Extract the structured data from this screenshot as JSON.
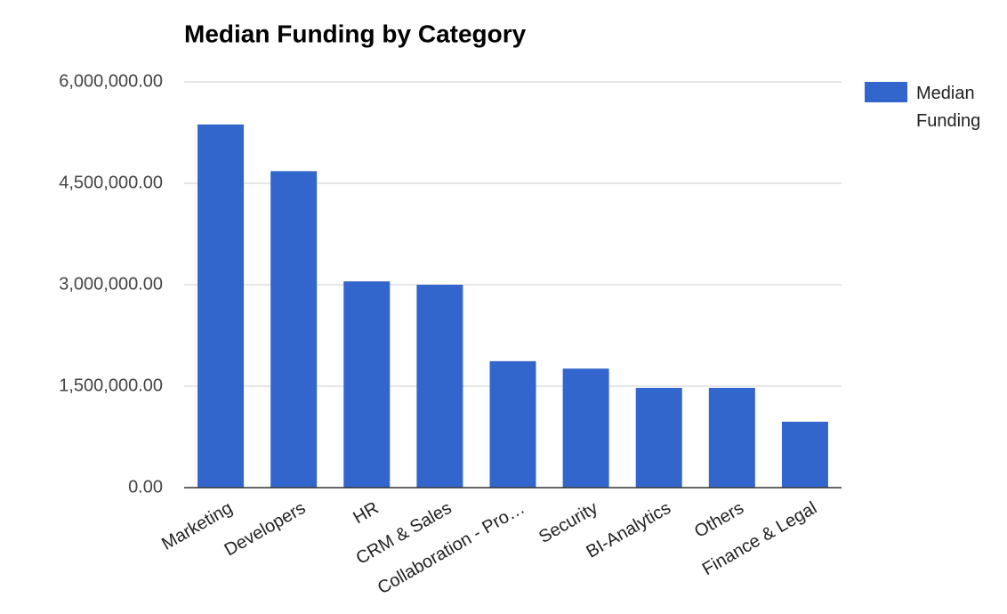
{
  "chart_data": {
    "type": "bar",
    "title": "Median Funding by Category",
    "categories": [
      "Marketing",
      "Developers",
      "HR",
      "CRM & Sales",
      "Collaboration - Pro…",
      "Security",
      "BI-Analytics",
      "Others",
      "Finance & Legal"
    ],
    "series": [
      {
        "name": "Median Funding",
        "color": "#3366cc",
        "values": [
          5370000,
          4680000,
          3050000,
          3000000,
          1870000,
          1760000,
          1475000,
          1475000,
          975000
        ]
      }
    ],
    "ylim": [
      0,
      6000000
    ],
    "yticks": [
      {
        "value": 0,
        "label": "0.00"
      },
      {
        "value": 1500000,
        "label": "1,500,000.00"
      },
      {
        "value": 3000000,
        "label": "3,000,000.00"
      },
      {
        "value": 4500000,
        "label": "4,500,000.00"
      },
      {
        "value": 6000000,
        "label": "6,000,000.00"
      }
    ],
    "grid": true,
    "legend": "right"
  }
}
